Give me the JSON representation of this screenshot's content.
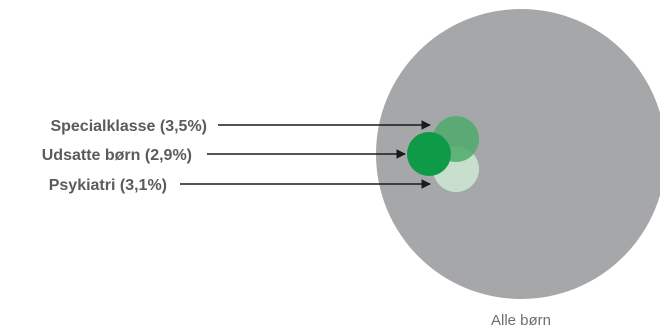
{
  "diagram": {
    "outer": {
      "label": "Alle børn",
      "color": "#a6a7a9"
    },
    "groups": [
      {
        "key": "specialklasse",
        "label": "Specialklasse (3,5%)",
        "color": "#4daa6b",
        "opacity": 0.85
      },
      {
        "key": "udsatte",
        "label": "Udsatte børn (2,9%)",
        "color": "#0f9a48",
        "opacity": 1
      },
      {
        "key": "psykiatri",
        "label": "Psykiatri (3,1%)",
        "color": "#cfe9d5",
        "opacity": 0.85
      }
    ],
    "arrow_color": "#1a1a1a"
  }
}
